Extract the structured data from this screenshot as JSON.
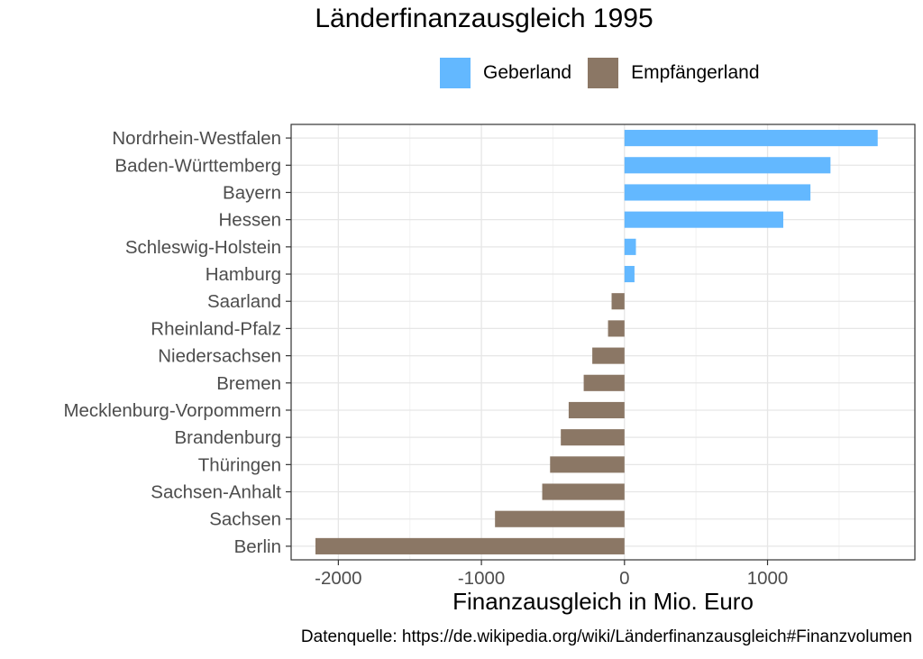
{
  "chart_data": {
    "type": "bar",
    "orientation": "horizontal",
    "title": "Länderfinanzausgleich 1995",
    "xlabel": "Finanzausgleich in Mio. Euro",
    "ylabel": "",
    "caption": "Datenquelle: https://de.wikipedia.org/wiki/Länderfinanzausgleich#Finanzvolumen",
    "xlim": [
      -2330,
      2030
    ],
    "xticks": [
      -2000,
      -1000,
      0,
      1000
    ],
    "xtick_labels": [
      "-2000",
      "-1000",
      "0",
      "1000"
    ],
    "grid": true,
    "legend_position": "top",
    "legend": [
      {
        "label": "Geberland",
        "color": "#63b8ff"
      },
      {
        "label": "Empfängerland",
        "color": "#8b7765"
      }
    ],
    "categories": [
      "Nordrhein-Westfalen",
      "Baden-Württemberg",
      "Bayern",
      "Hessen",
      "Schleswig-Holstein",
      "Hamburg",
      "Saarland",
      "Rheinland-Pfalz",
      "Niedersachsen",
      "Bremen",
      "Mecklenburg-Vorpommern",
      "Brandenburg",
      "Thüringen",
      "Sachsen-Anhalt",
      "Sachsen",
      "Berlin"
    ],
    "values": [
      1770,
      1440,
      1300,
      1110,
      80,
      70,
      -90,
      -115,
      -225,
      -285,
      -390,
      -445,
      -520,
      -575,
      -905,
      -2160
    ],
    "groups": [
      "Geberland",
      "Geberland",
      "Geberland",
      "Geberland",
      "Geberland",
      "Geberland",
      "Empfängerland",
      "Empfängerland",
      "Empfängerland",
      "Empfängerland",
      "Empfängerland",
      "Empfängerland",
      "Empfängerland",
      "Empfängerland",
      "Empfängerland",
      "Empfängerland"
    ]
  }
}
